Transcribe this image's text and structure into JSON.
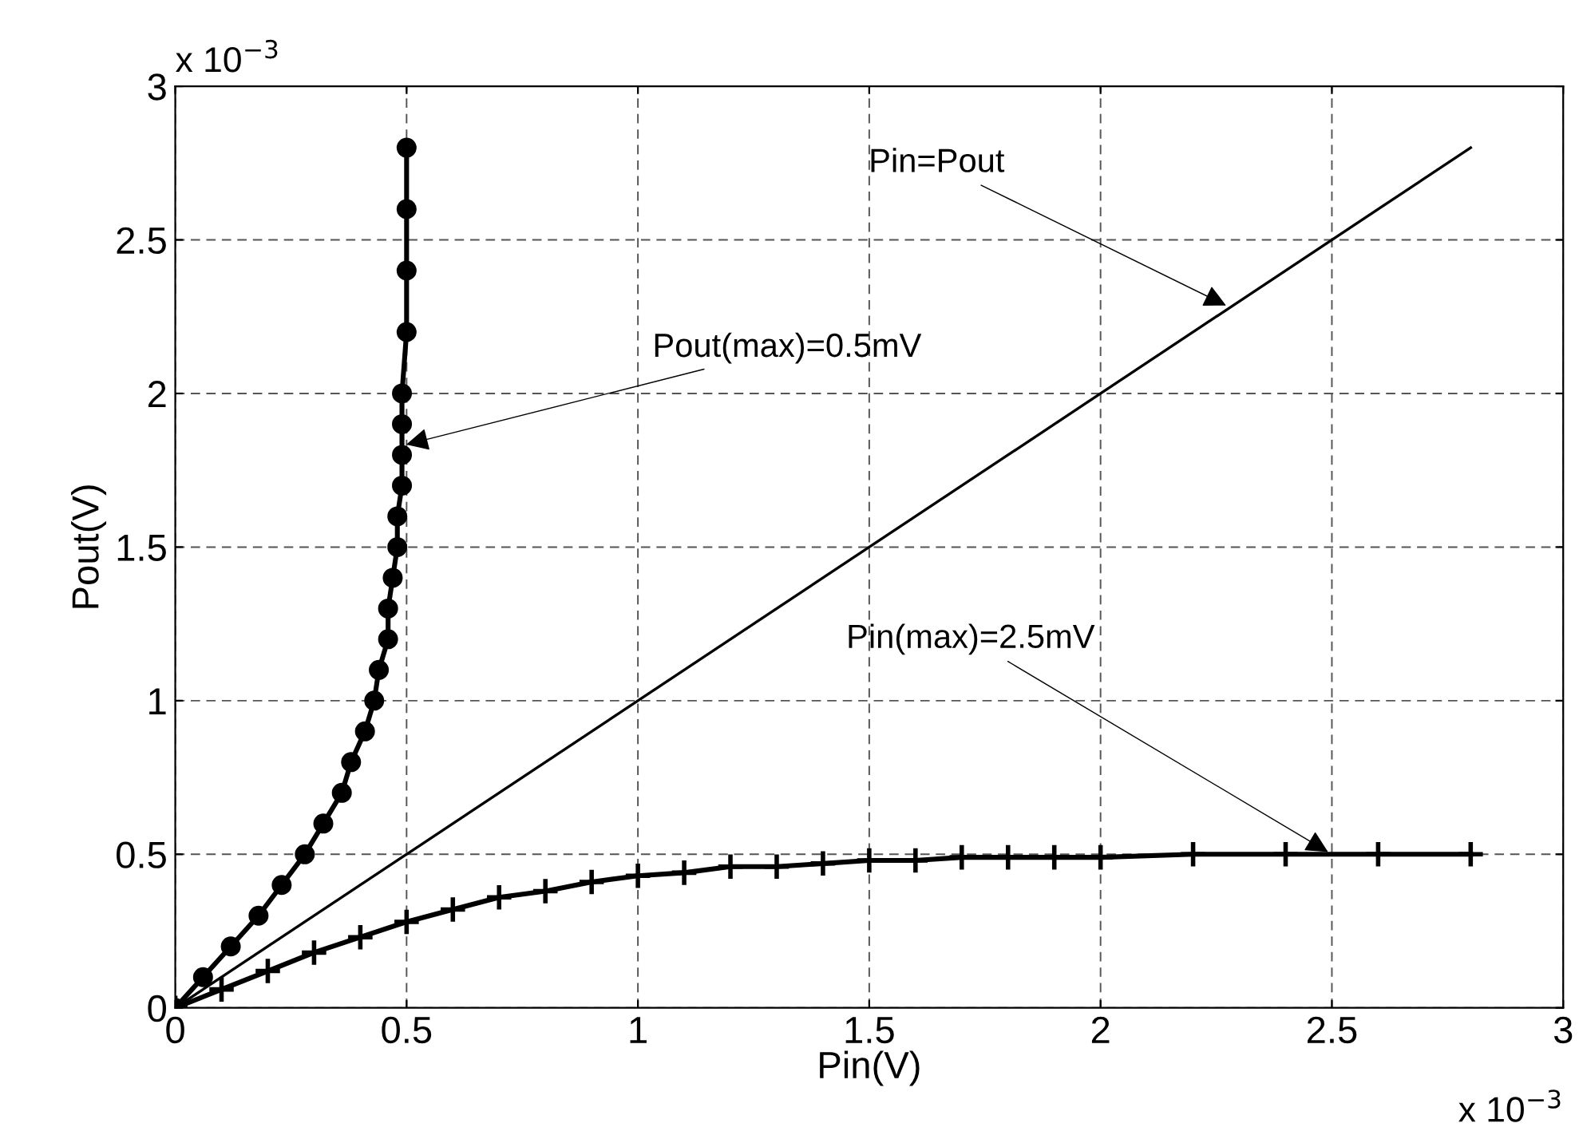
{
  "chart_data": {
    "type": "line",
    "xlabel": "Pin(V)",
    "ylabel": "Pout(V)",
    "xlim": [
      0,
      3
    ],
    "ylim": [
      0,
      3
    ],
    "xticks": [
      0,
      0.5,
      1,
      1.5,
      2,
      2.5,
      3
    ],
    "yticks": [
      0,
      0.5,
      1,
      1.5,
      2,
      2.5,
      3
    ],
    "grid": true,
    "series": [
      {
        "color": "#000000",
        "marker": "circle",
        "x": [
          0,
          0.06,
          0.12,
          0.18,
          0.23,
          0.28,
          0.32,
          0.36,
          0.38,
          0.41,
          0.43,
          0.44,
          0.46,
          0.46,
          0.47,
          0.48,
          0.48,
          0.49,
          0.49,
          0.49,
          0.49,
          0.5,
          0.5,
          0.5,
          0.5
        ],
        "values": [
          0,
          0.1,
          0.2,
          0.3,
          0.4,
          0.5,
          0.6,
          0.7,
          0.8,
          0.9,
          1,
          1.1,
          1.2,
          1.3,
          1.4,
          1.5,
          1.6,
          1.7,
          1.8,
          1.9,
          2,
          2.2,
          2.4,
          2.6,
          2.8
        ]
      },
      {
        "color": "#000000",
        "marker": "cross",
        "x": [
          0,
          0.1,
          0.2,
          0.3,
          0.4,
          0.5,
          0.6,
          0.7,
          0.8,
          0.9,
          1,
          1.1,
          1.2,
          1.3,
          1.4,
          1.5,
          1.6,
          1.7,
          1.8,
          1.9,
          2,
          2.2,
          2.4,
          2.6,
          2.8
        ],
        "values": [
          0,
          0.06,
          0.12,
          0.18,
          0.23,
          0.28,
          0.32,
          0.36,
          0.38,
          0.41,
          0.43,
          0.44,
          0.46,
          0.46,
          0.47,
          0.48,
          0.48,
          0.49,
          0.49,
          0.49,
          0.49,
          0.5,
          0.5,
          0.5,
          0.5
        ]
      },
      {
        "color": "#000000",
        "marker": "none",
        "x": [
          0,
          2.8
        ],
        "values": [
          0,
          2.8
        ]
      }
    ],
    "annotations": [
      {
        "text": "Pin=Pout",
        "x": 2.28,
        "y": 2.28
      },
      {
        "text": "Pout(max)=0.5mV",
        "x": 0.49,
        "y": 1.83
      },
      {
        "text": "Pin(max)=2.5mV",
        "x": 2.5,
        "y": 0.5
      },
      "x 10$^{−3}$",
      "x 10$^{−3}$"
    ]
  }
}
